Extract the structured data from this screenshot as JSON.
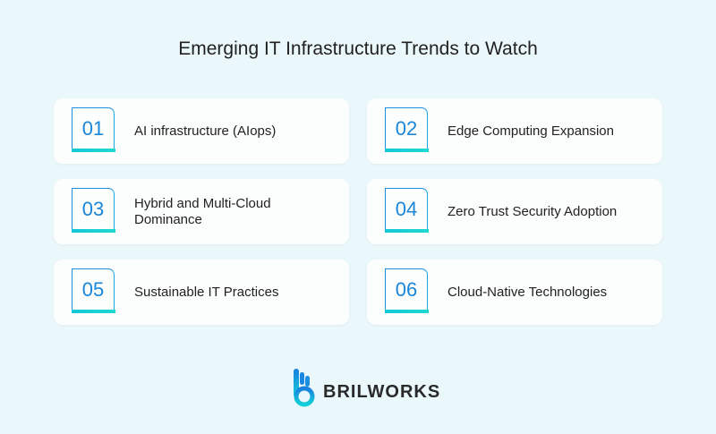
{
  "title": "Emerging IT Infrastructure Trends to Watch",
  "trends": [
    {
      "number": "01",
      "label": "AI infrastructure (AIops)"
    },
    {
      "number": "02",
      "label": "Edge Computing Expansion"
    },
    {
      "number": "03",
      "label": "Hybrid and Multi-Cloud Dominance"
    },
    {
      "number": "04",
      "label": "Zero Trust Security Adoption"
    },
    {
      "number": "05",
      "label": "Sustainable IT Practices"
    },
    {
      "number": "06",
      "label": "Cloud-Native Technologies"
    }
  ],
  "brand": {
    "name": "BRILWORKS",
    "accent": "#1a86d8",
    "accent2": "#12c8d8"
  }
}
